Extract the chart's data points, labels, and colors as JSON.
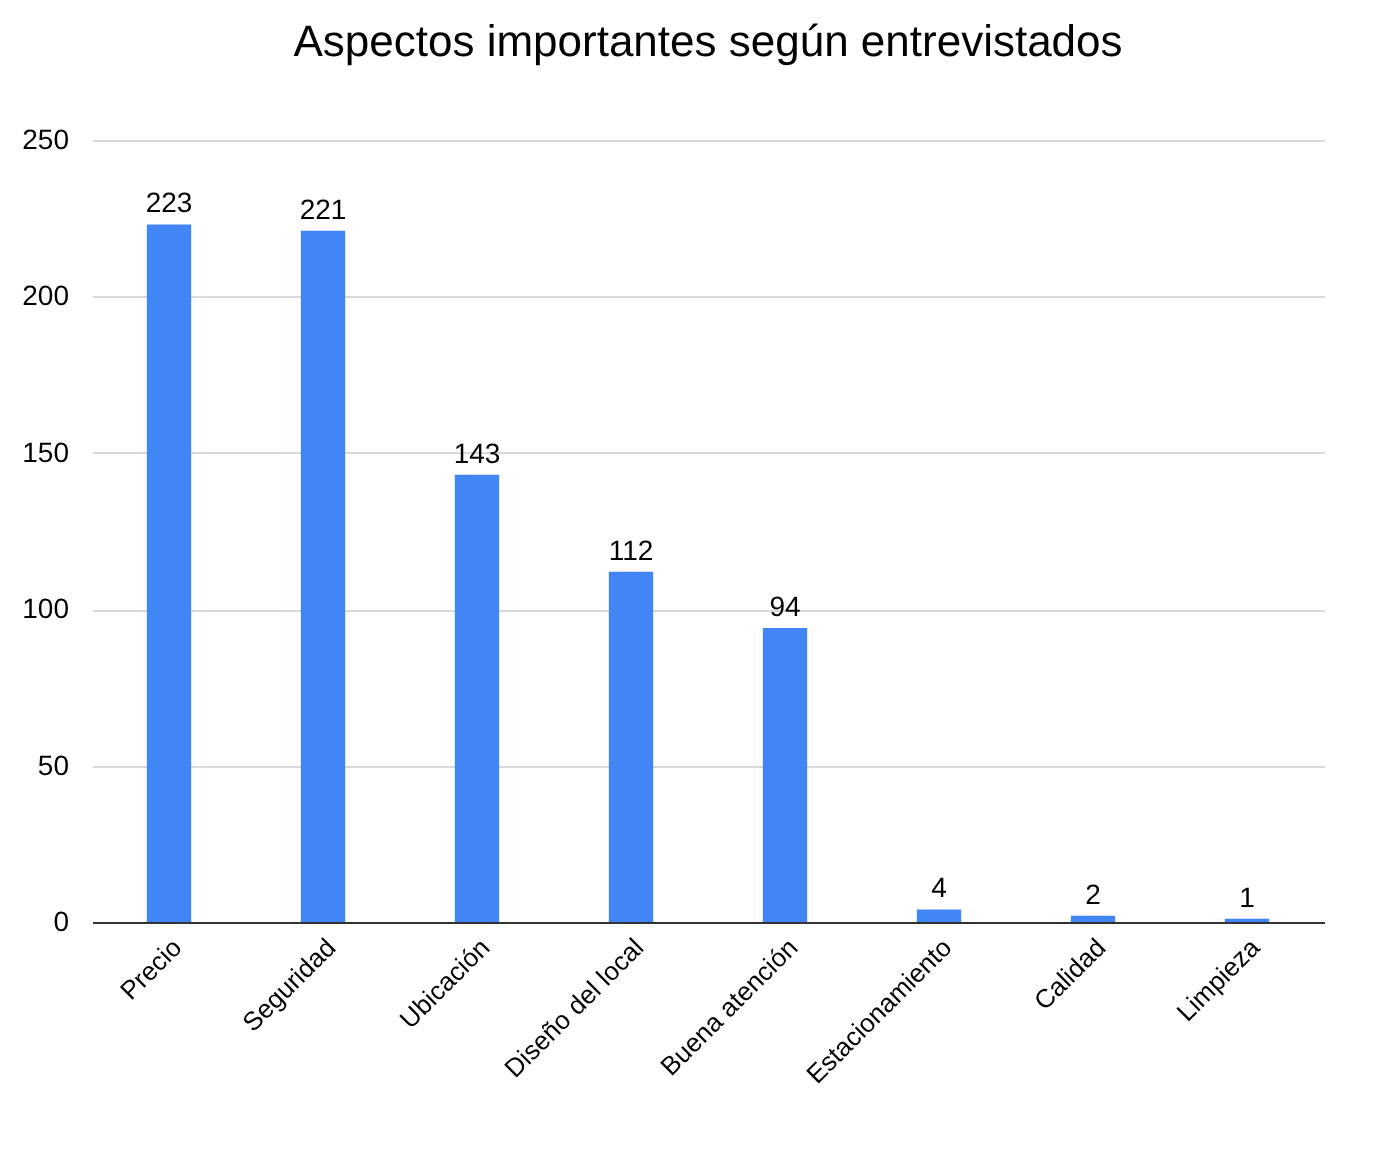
{
  "chart_data": {
    "type": "bar",
    "title": "Aspectos importantes según entrevistados",
    "categories": [
      "Precio",
      "Seguridad",
      "Ubicación",
      "Diseño del local",
      "Buena atención",
      "Estacionamiento",
      "Calidad",
      "Limpieza"
    ],
    "values": [
      223,
      221,
      143,
      112,
      94,
      4,
      2,
      1
    ],
    "color": "#4285f4",
    "ylim": [
      0,
      250
    ],
    "yticks": [
      0,
      50,
      100,
      150,
      200,
      250
    ],
    "grid": "y",
    "data_labels": true
  }
}
